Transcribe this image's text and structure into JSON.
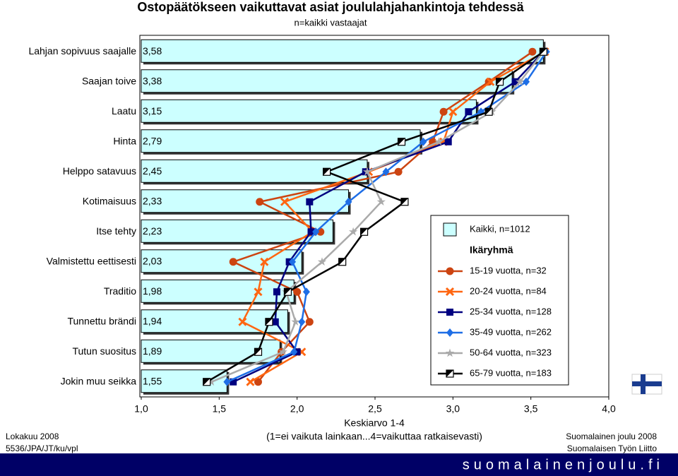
{
  "chart_data": {
    "type": "bar",
    "orientation": "horizontal",
    "title": "Ostopäätökseen vaikuttavat asiat joululahjahankintoja tehdessä",
    "subtitle": "n=kaikki vastaajat",
    "x_label": "Keskiarvo 1-4",
    "x_label_note": "(1=ei vaikuta lainkaan...4=vaikuttaa ratkaisevasti)",
    "categories": [
      "Lahjan sopivuus saajalle",
      "Saajan toive",
      "Laatu",
      "Hinta",
      "Helppo satavuus",
      "Kotimaisuus",
      "Itse tehty",
      "Valmistettu eettisesti",
      "Traditio",
      "Tunnettu brändi",
      "Tutun suositus",
      "Jokin muu seikka"
    ],
    "xlim": [
      1,
      4
    ],
    "xticks": [
      {
        "value": 1,
        "label": "1,0"
      },
      {
        "value": 1.5,
        "label": "1,5"
      },
      {
        "value": 2,
        "label": "2,0"
      },
      {
        "value": 2.5,
        "label": "2,5"
      },
      {
        "value": 3,
        "label": "3,0"
      },
      {
        "value": 3.5,
        "label": "3,5"
      },
      {
        "value": 4,
        "label": "4,0"
      }
    ],
    "legend_heading": "Ikäryhmä",
    "series": [
      {
        "name": "Kaikki, n=1012",
        "type": "bar",
        "color": "#ccffff",
        "values": [
          3.58,
          3.38,
          3.15,
          2.79,
          2.45,
          2.33,
          2.23,
          2.03,
          1.98,
          1.94,
          1.89,
          1.55
        ],
        "value_labels": [
          "3,58",
          "3,38",
          "3,15",
          "2,79",
          "2,45",
          "2,33",
          "2,23",
          "2,03",
          "1,98",
          "1,94",
          "1,89",
          "1,55"
        ]
      },
      {
        "name": "15-19 vuotta, n=32",
        "type": "line",
        "marker": "circle",
        "color": "#cc4411",
        "values": [
          3.51,
          3.23,
          2.94,
          2.87,
          2.65,
          1.76,
          2.15,
          1.59,
          2.0,
          2.08,
          1.9,
          1.75
        ]
      },
      {
        "name": "20-24 vuotta, n=84",
        "type": "line",
        "marker": "cross",
        "color": "#ff6611",
        "values": [
          3.59,
          3.24,
          3.0,
          2.94,
          2.46,
          1.92,
          2.1,
          1.79,
          1.75,
          1.65,
          2.03,
          1.7
        ]
      },
      {
        "name": "25-34 vuotta, n=128",
        "type": "line",
        "marker": "square",
        "color": "#000080",
        "values": [
          3.58,
          3.4,
          3.1,
          2.97,
          2.44,
          2.08,
          2.09,
          1.95,
          1.87,
          1.86,
          2.0,
          1.59
        ]
      },
      {
        "name": "35-49 vuotta, n=262",
        "type": "line",
        "marker": "diamond",
        "color": "#1e6ee6",
        "values": [
          3.6,
          3.47,
          3.18,
          2.81,
          2.57,
          2.33,
          2.12,
          1.97,
          2.06,
          2.03,
          1.98,
          1.55
        ]
      },
      {
        "name": "50-64 vuotta, n=323",
        "type": "line",
        "marker": "star",
        "color": "#aaaaaa",
        "values": [
          3.58,
          3.43,
          3.25,
          2.91,
          2.45,
          2.54,
          2.36,
          2.16,
          1.93,
          1.99,
          1.91,
          1.45
        ]
      },
      {
        "name": "65-79 vuotta, n=183",
        "type": "line",
        "marker": "half",
        "color": "#000000",
        "values": [
          3.58,
          3.3,
          3.23,
          2.67,
          2.19,
          2.69,
          2.43,
          2.29,
          1.94,
          1.82,
          1.75,
          1.42
        ]
      }
    ]
  },
  "footer": {
    "date": "Lokakuu 2008",
    "code": "5536/JPA/JT/ku/vpl",
    "source1": "Suomalainen joulu 2008",
    "source2": "Suomalaisen Työn Liitto",
    "site": "suomalainenjoulu.fi"
  }
}
